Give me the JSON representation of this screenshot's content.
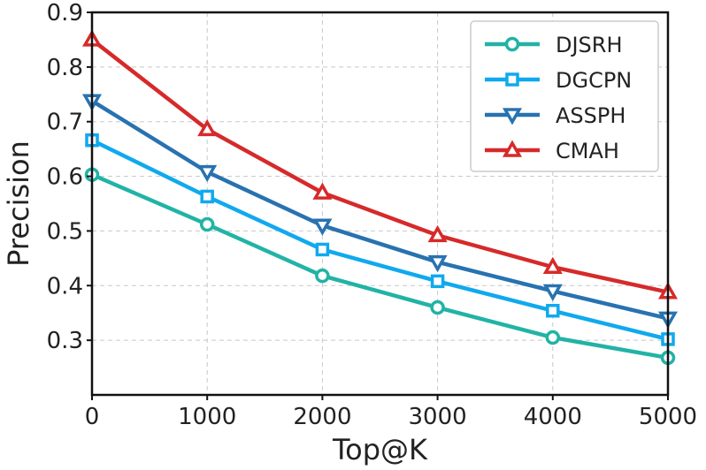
{
  "chart_data": {
    "type": "line",
    "title": "",
    "xlabel": "Top@K",
    "ylabel": "Precision",
    "x": [
      0,
      1000,
      2000,
      3000,
      4000,
      5000
    ],
    "xlim": [
      0,
      5000
    ],
    "ylim": [
      0.2,
      0.9
    ],
    "xticks": [
      0,
      1000,
      2000,
      3000,
      4000,
      5000
    ],
    "xtick_labels": [
      "0",
      "1000",
      "2000",
      "3000",
      "4000",
      "5000"
    ],
    "yticks": [
      0.3,
      0.4,
      0.5,
      0.6,
      0.7,
      0.8,
      0.9
    ],
    "ytick_labels": [
      "0.3",
      "0.4",
      "0.5",
      "0.6",
      "0.7",
      "0.8",
      "0.9"
    ],
    "grid": true,
    "legend_position": "top-right",
    "series": [
      {
        "name": "DJSRH",
        "values": [
          0.603,
          0.512,
          0.418,
          0.36,
          0.305,
          0.268
        ],
        "color": "#21b3a6",
        "marker": "circle"
      },
      {
        "name": "DGCPN",
        "values": [
          0.666,
          0.563,
          0.466,
          0.408,
          0.354,
          0.302
        ],
        "color": "#10a9ee",
        "marker": "square"
      },
      {
        "name": "ASSPH",
        "values": [
          0.738,
          0.608,
          0.51,
          0.443,
          0.39,
          0.34
        ],
        "color": "#2872b0",
        "marker": "triangle-down"
      },
      {
        "name": "CMAH",
        "values": [
          0.85,
          0.686,
          0.57,
          0.492,
          0.434,
          0.388
        ],
        "color": "#d62a2a",
        "marker": "triangle-up"
      }
    ]
  }
}
